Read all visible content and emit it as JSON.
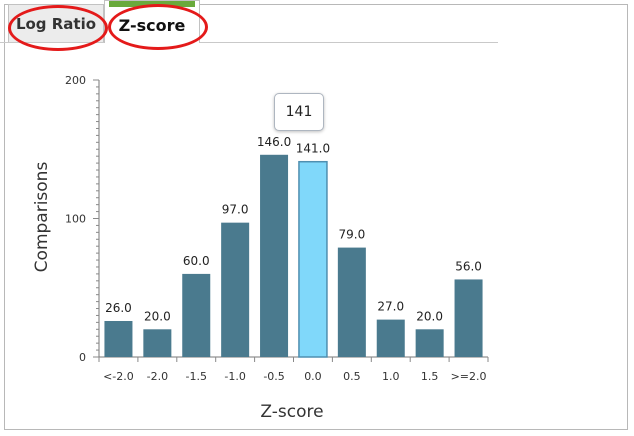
{
  "tabs": {
    "log_ratio": "Log Ratio",
    "z_score": "Z-score"
  },
  "colors": {
    "bar": "#4a7a8e",
    "bar_highlight": "#80d8fa",
    "bar_highlight_stroke": "#4f8fb0",
    "active_tab_bar": "#6aaa3c",
    "annotation_ring": "#e41a1a"
  },
  "tooltip": {
    "value": "141"
  },
  "chart_data": {
    "type": "bar",
    "xlabel": "Z-score",
    "ylabel": "Comparisons",
    "ylim": [
      0,
      200
    ],
    "yticks": [
      "0",
      "100",
      "200"
    ],
    "categories": [
      "<-2.0",
      "-2.0",
      "-1.5",
      "-1.0",
      "-0.5",
      "0.0",
      "0.5",
      "1.0",
      "1.5",
      ">=2.0"
    ],
    "values": [
      26,
      20,
      60,
      97,
      146,
      141,
      79,
      27,
      20,
      56
    ],
    "labels": [
      "26.0",
      "20.0",
      "60.0",
      "97.0",
      "146.0",
      "141.0",
      "79.0",
      "27.0",
      "20.0",
      "56.0"
    ],
    "highlighted_category": "0.0",
    "grid": false,
    "legend": "none"
  }
}
